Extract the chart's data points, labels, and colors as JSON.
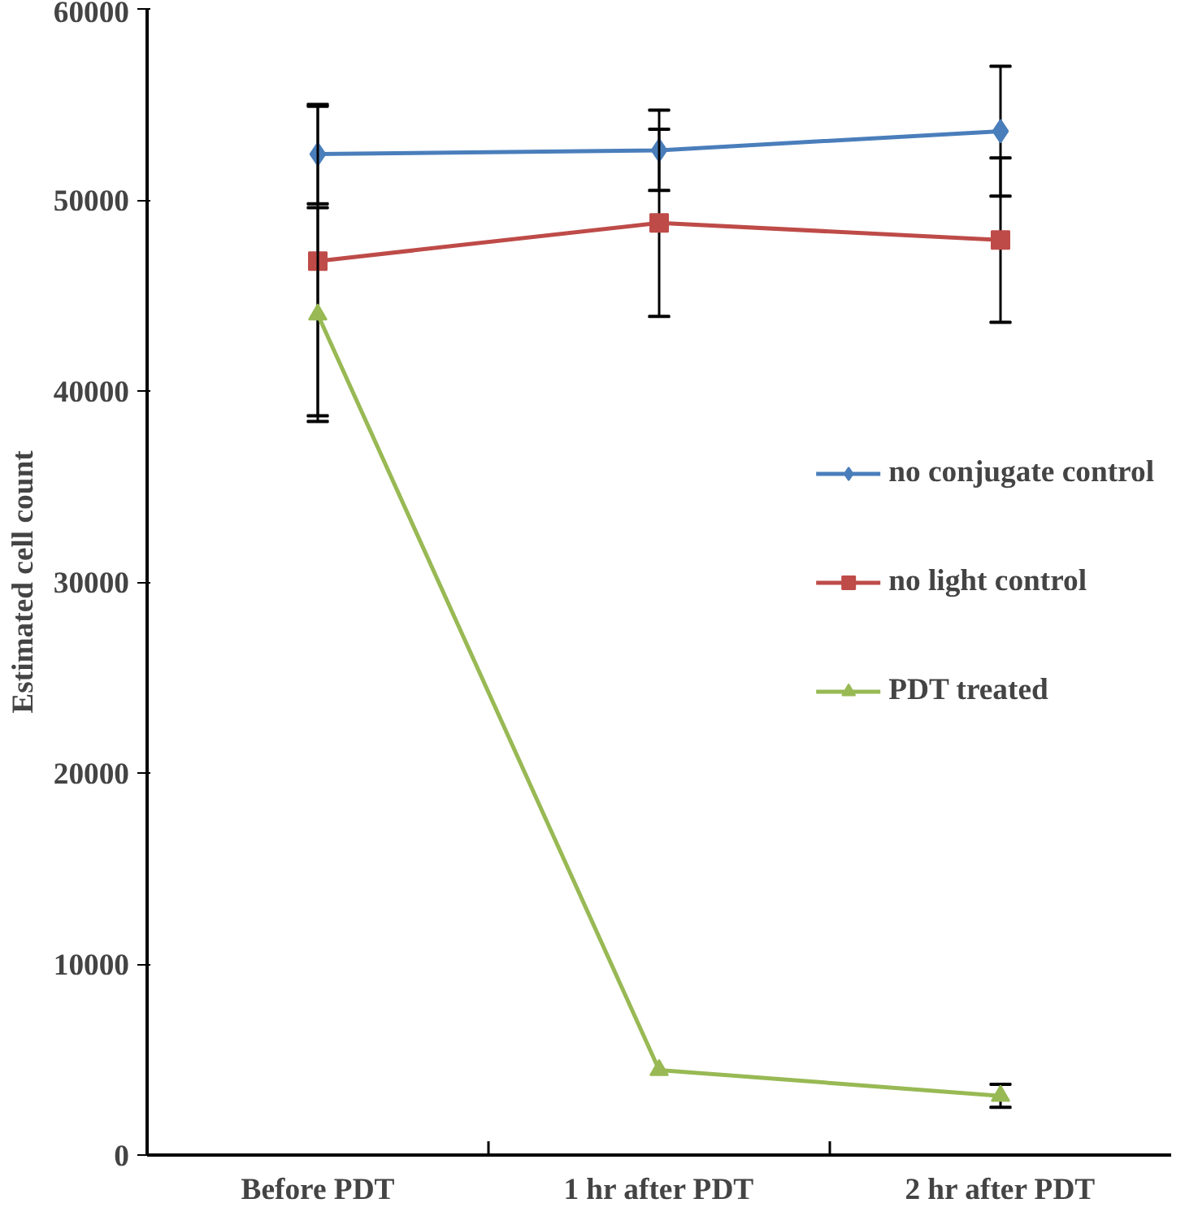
{
  "chart_data": {
    "type": "line",
    "ylabel": "Estimated cell count",
    "categories": [
      "Before PDT",
      "1 hr after PDT",
      "2 hr after PDT"
    ],
    "ylim": [
      0,
      60000
    ],
    "yticks": [
      0,
      10000,
      20000,
      30000,
      40000,
      50000,
      60000
    ],
    "grid": false,
    "legend": "right",
    "series": [
      {
        "name": "no conjugate control",
        "color": "#4a7ebb",
        "marker": "diamond",
        "values": [
          52400,
          52600,
          53600
        ],
        "errors": [
          2600,
          2100,
          3400
        ]
      },
      {
        "name": "no light control",
        "color": "#be4b48",
        "marker": "square",
        "values": [
          46800,
          48800,
          47900
        ],
        "errors": [
          8100,
          4900,
          4300
        ]
      },
      {
        "name": "PDT treated",
        "color": "#98b954",
        "marker": "triangle",
        "values": [
          44000,
          4450,
          3100
        ],
        "errors": [
          5600,
          null,
          600
        ]
      }
    ]
  }
}
